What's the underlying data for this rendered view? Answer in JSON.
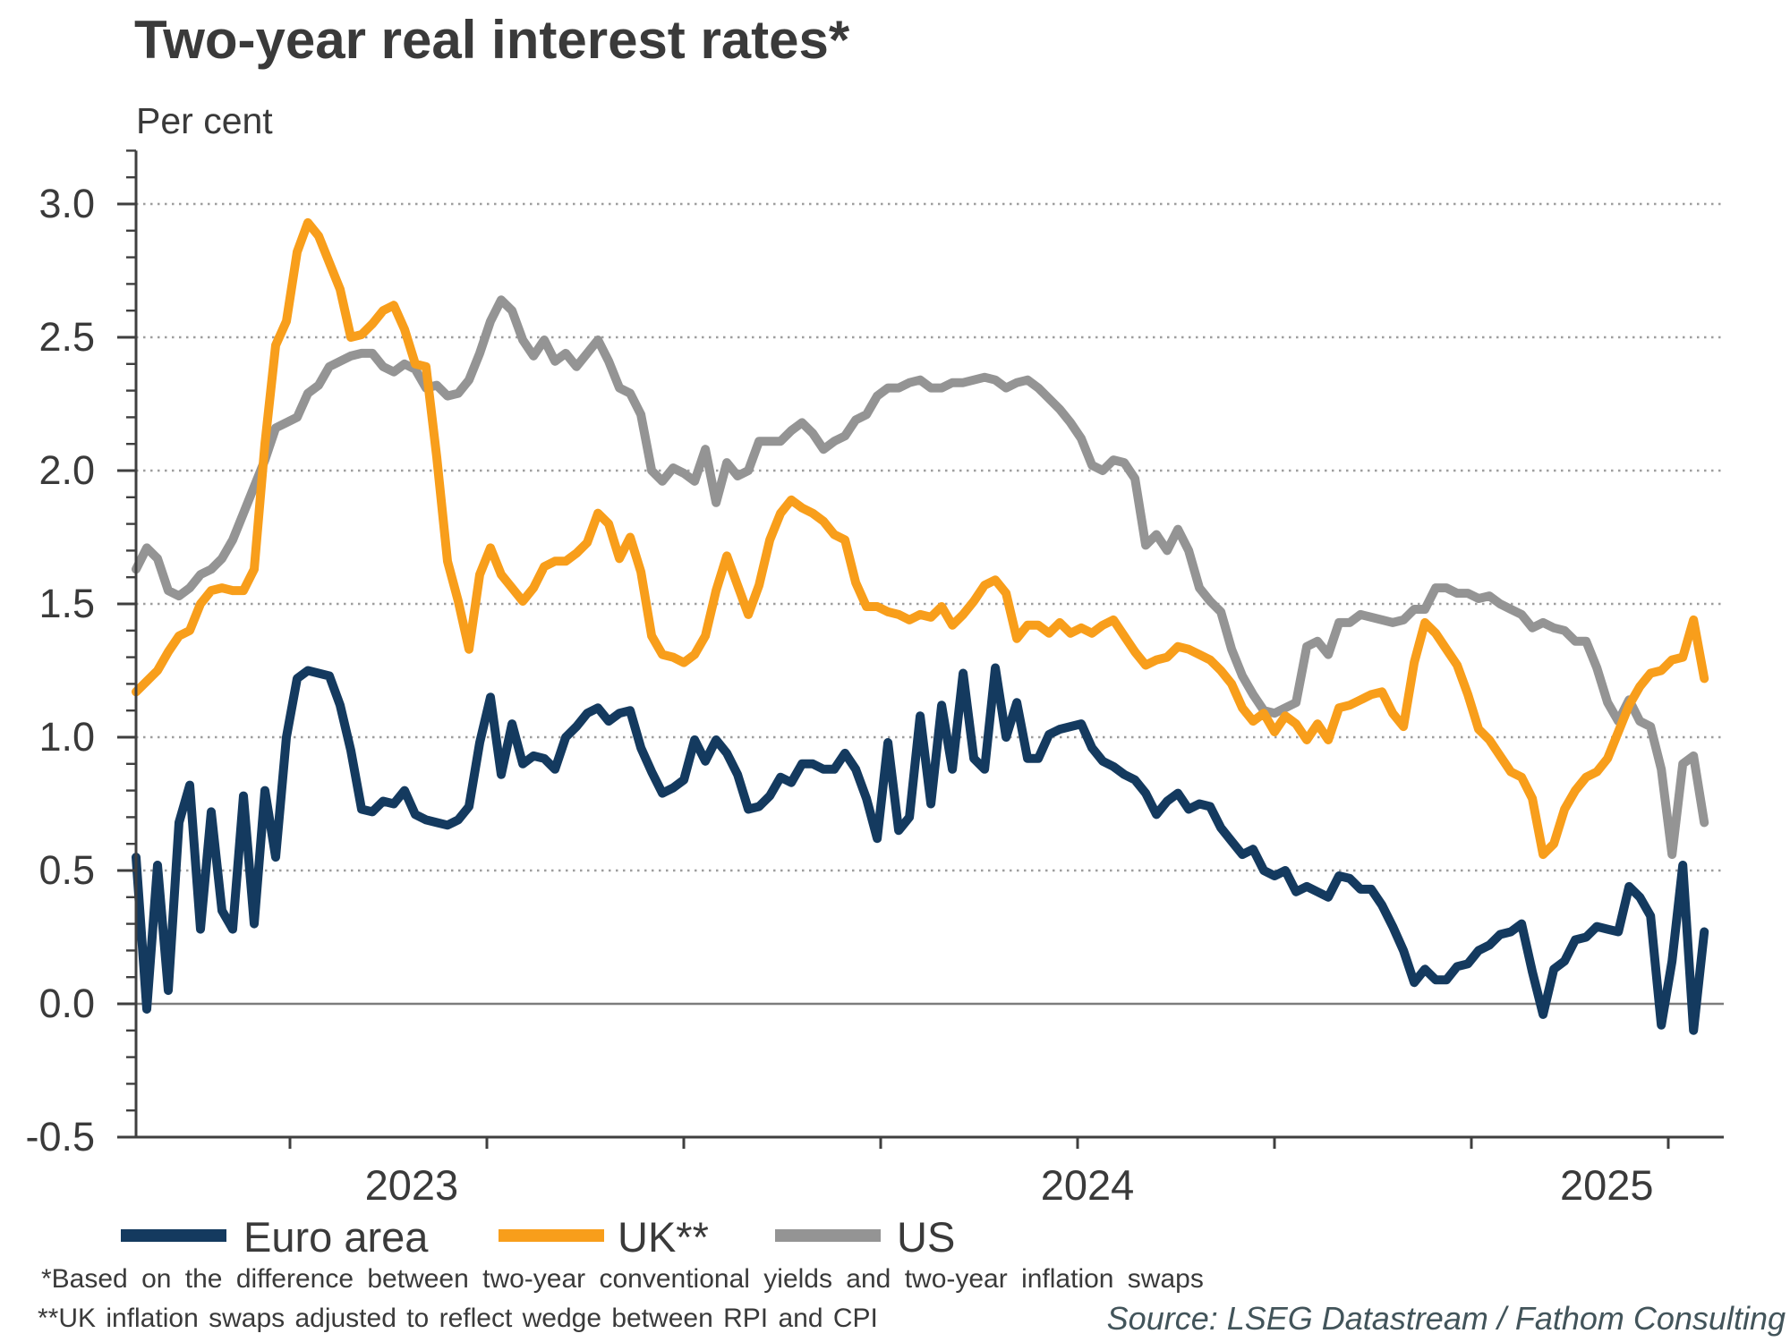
{
  "chart_data": {
    "type": "line",
    "title": "Two-year real interest rates*",
    "unit_label": "Per cent",
    "y_axis": {
      "min": -0.5,
      "max": 3.2,
      "major_step": 0.5,
      "minor_step": 0.1,
      "tick_values": [
        3.0,
        2.5,
        2.0,
        1.5,
        1.0,
        0.5,
        0.0,
        -0.5
      ],
      "tick_labels": [
        "3.0",
        "2.5",
        "2.0",
        "1.5",
        "1.0",
        "0.5",
        "0.0",
        "-0.5"
      ],
      "dotted_gridlines": [
        0.5,
        1.0,
        1.5,
        2.0,
        2.5,
        3.0
      ],
      "zero_line": 0.0
    },
    "x_axis": {
      "unit": "months_since_jan_2023",
      "tick_months": [
        0,
        4,
        8,
        12,
        16,
        20,
        24,
        28
      ],
      "year_labels": [
        {
          "label": "2023",
          "month": 2.47
        },
        {
          "label": "2024",
          "month": 16.2
        },
        {
          "label": "2025",
          "month": 26.75
        }
      ]
    },
    "sample_grid": {
      "m_start": -3.127,
      "m_step": 0.2182,
      "n": 147
    },
    "series": [
      {
        "name": "Euro area",
        "color": "#143A5F",
        "values": [
          0.55,
          -0.02,
          0.52,
          0.05,
          0.68,
          0.82,
          0.28,
          0.72,
          0.35,
          0.28,
          0.78,
          0.3,
          0.8,
          0.55,
          1.0,
          1.22,
          1.25,
          1.24,
          1.23,
          1.12,
          0.95,
          0.73,
          0.72,
          0.76,
          0.75,
          0.8,
          0.71,
          0.69,
          0.68,
          0.67,
          0.69,
          0.74,
          0.98,
          1.15,
          0.86,
          1.05,
          0.9,
          0.93,
          0.92,
          0.88,
          1.0,
          1.04,
          1.09,
          1.11,
          1.06,
          1.09,
          1.1,
          0.96,
          0.87,
          0.79,
          0.81,
          0.84,
          0.99,
          0.91,
          0.99,
          0.94,
          0.86,
          0.73,
          0.74,
          0.78,
          0.85,
          0.83,
          0.9,
          0.9,
          0.88,
          0.88,
          0.94,
          0.88,
          0.77,
          0.62,
          0.98,
          0.65,
          0.7,
          1.08,
          0.75,
          1.12,
          0.88,
          1.24,
          0.92,
          0.88,
          1.26,
          1.0,
          1.13,
          0.92,
          0.92,
          1.01,
          1.03,
          1.04,
          1.05,
          0.96,
          0.91,
          0.89,
          0.86,
          0.84,
          0.79,
          0.71,
          0.76,
          0.79,
          0.73,
          0.75,
          0.74,
          0.66,
          0.61,
          0.56,
          0.58,
          0.5,
          0.48,
          0.5,
          0.42,
          0.44,
          0.42,
          0.4,
          0.48,
          0.47,
          0.43,
          0.43,
          0.37,
          0.29,
          0.2,
          0.08,
          0.13,
          0.09,
          0.09,
          0.14,
          0.15,
          0.2,
          0.22,
          0.26,
          0.27,
          0.3,
          0.12,
          -0.04,
          0.13,
          0.16,
          0.24,
          0.25,
          0.29,
          0.28,
          0.27,
          0.44,
          0.4,
          0.33,
          -0.08,
          0.16,
          0.52,
          -0.1,
          0.27
        ]
      },
      {
        "name": "UK**",
        "color": "#F89E1B",
        "values": [
          1.17,
          1.21,
          1.25,
          1.32,
          1.38,
          1.4,
          1.5,
          1.55,
          1.56,
          1.55,
          1.55,
          1.63,
          2.1,
          2.47,
          2.56,
          2.82,
          2.93,
          2.88,
          2.78,
          2.68,
          2.5,
          2.51,
          2.55,
          2.6,
          2.62,
          2.53,
          2.4,
          2.39,
          2.05,
          1.66,
          1.51,
          1.33,
          1.61,
          1.71,
          1.61,
          1.56,
          1.51,
          1.56,
          1.64,
          1.66,
          1.66,
          1.69,
          1.73,
          1.84,
          1.8,
          1.67,
          1.75,
          1.62,
          1.38,
          1.31,
          1.3,
          1.28,
          1.31,
          1.38,
          1.55,
          1.68,
          1.57,
          1.46,
          1.57,
          1.74,
          1.84,
          1.89,
          1.86,
          1.84,
          1.81,
          1.76,
          1.74,
          1.58,
          1.49,
          1.49,
          1.47,
          1.46,
          1.44,
          1.46,
          1.45,
          1.49,
          1.42,
          1.46,
          1.51,
          1.57,
          1.59,
          1.54,
          1.37,
          1.42,
          1.42,
          1.39,
          1.43,
          1.39,
          1.41,
          1.39,
          1.42,
          1.44,
          1.38,
          1.32,
          1.27,
          1.29,
          1.3,
          1.34,
          1.33,
          1.31,
          1.29,
          1.25,
          1.2,
          1.11,
          1.06,
          1.09,
          1.02,
          1.08,
          1.05,
          0.99,
          1.05,
          0.99,
          1.11,
          1.12,
          1.14,
          1.16,
          1.17,
          1.09,
          1.04,
          1.28,
          1.43,
          1.39,
          1.33,
          1.27,
          1.16,
          1.03,
          0.99,
          0.93,
          0.87,
          0.85,
          0.77,
          0.56,
          0.6,
          0.73,
          0.8,
          0.85,
          0.87,
          0.92,
          1.02,
          1.12,
          1.19,
          1.24,
          1.25,
          1.29,
          1.3,
          1.44,
          1.22
        ]
      },
      {
        "name": "US",
        "color": "#949494",
        "values": [
          1.63,
          1.71,
          1.67,
          1.55,
          1.53,
          1.56,
          1.61,
          1.63,
          1.67,
          1.74,
          1.84,
          1.94,
          2.04,
          2.16,
          2.18,
          2.2,
          2.29,
          2.32,
          2.39,
          2.41,
          2.43,
          2.44,
          2.44,
          2.39,
          2.37,
          2.4,
          2.38,
          2.31,
          2.32,
          2.28,
          2.29,
          2.34,
          2.44,
          2.56,
          2.64,
          2.6,
          2.49,
          2.43,
          2.49,
          2.41,
          2.44,
          2.39,
          2.44,
          2.49,
          2.41,
          2.31,
          2.29,
          2.21,
          2.0,
          1.96,
          2.01,
          1.99,
          1.96,
          2.08,
          1.88,
          2.03,
          1.98,
          2.0,
          2.11,
          2.11,
          2.11,
          2.15,
          2.18,
          2.14,
          2.08,
          2.11,
          2.13,
          2.19,
          2.21,
          2.28,
          2.31,
          2.31,
          2.33,
          2.34,
          2.31,
          2.31,
          2.33,
          2.33,
          2.34,
          2.35,
          2.34,
          2.31,
          2.33,
          2.34,
          2.31,
          2.27,
          2.23,
          2.18,
          2.12,
          2.02,
          2.0,
          2.04,
          2.03,
          1.97,
          1.72,
          1.76,
          1.7,
          1.78,
          1.7,
          1.56,
          1.51,
          1.47,
          1.33,
          1.23,
          1.16,
          1.1,
          1.09,
          1.11,
          1.13,
          1.34,
          1.36,
          1.31,
          1.43,
          1.43,
          1.46,
          1.45,
          1.44,
          1.43,
          1.44,
          1.48,
          1.48,
          1.56,
          1.56,
          1.54,
          1.54,
          1.52,
          1.53,
          1.5,
          1.48,
          1.46,
          1.41,
          1.43,
          1.41,
          1.4,
          1.36,
          1.36,
          1.26,
          1.13,
          1.06,
          1.14,
          1.06,
          1.04,
          0.88,
          0.56,
          0.9,
          0.93,
          0.68
        ]
      }
    ],
    "legend_position": "bottom",
    "footnotes": [
      "*Based on the difference between two-year conventional yields and two-year inflation swaps",
      "**UK inflation swaps adjusted to reflect wedge between RPI and CPI"
    ],
    "source": "Source: LSEG Datastream / Fathom Consulting"
  },
  "style": {
    "axis_color": "#3f3f3f",
    "grid_color": "#9e9e9e",
    "zero_line_color": "#7d7d7d",
    "text_color": "#3a3a3a",
    "source_color": "#42545a",
    "background": "#ffffff"
  }
}
